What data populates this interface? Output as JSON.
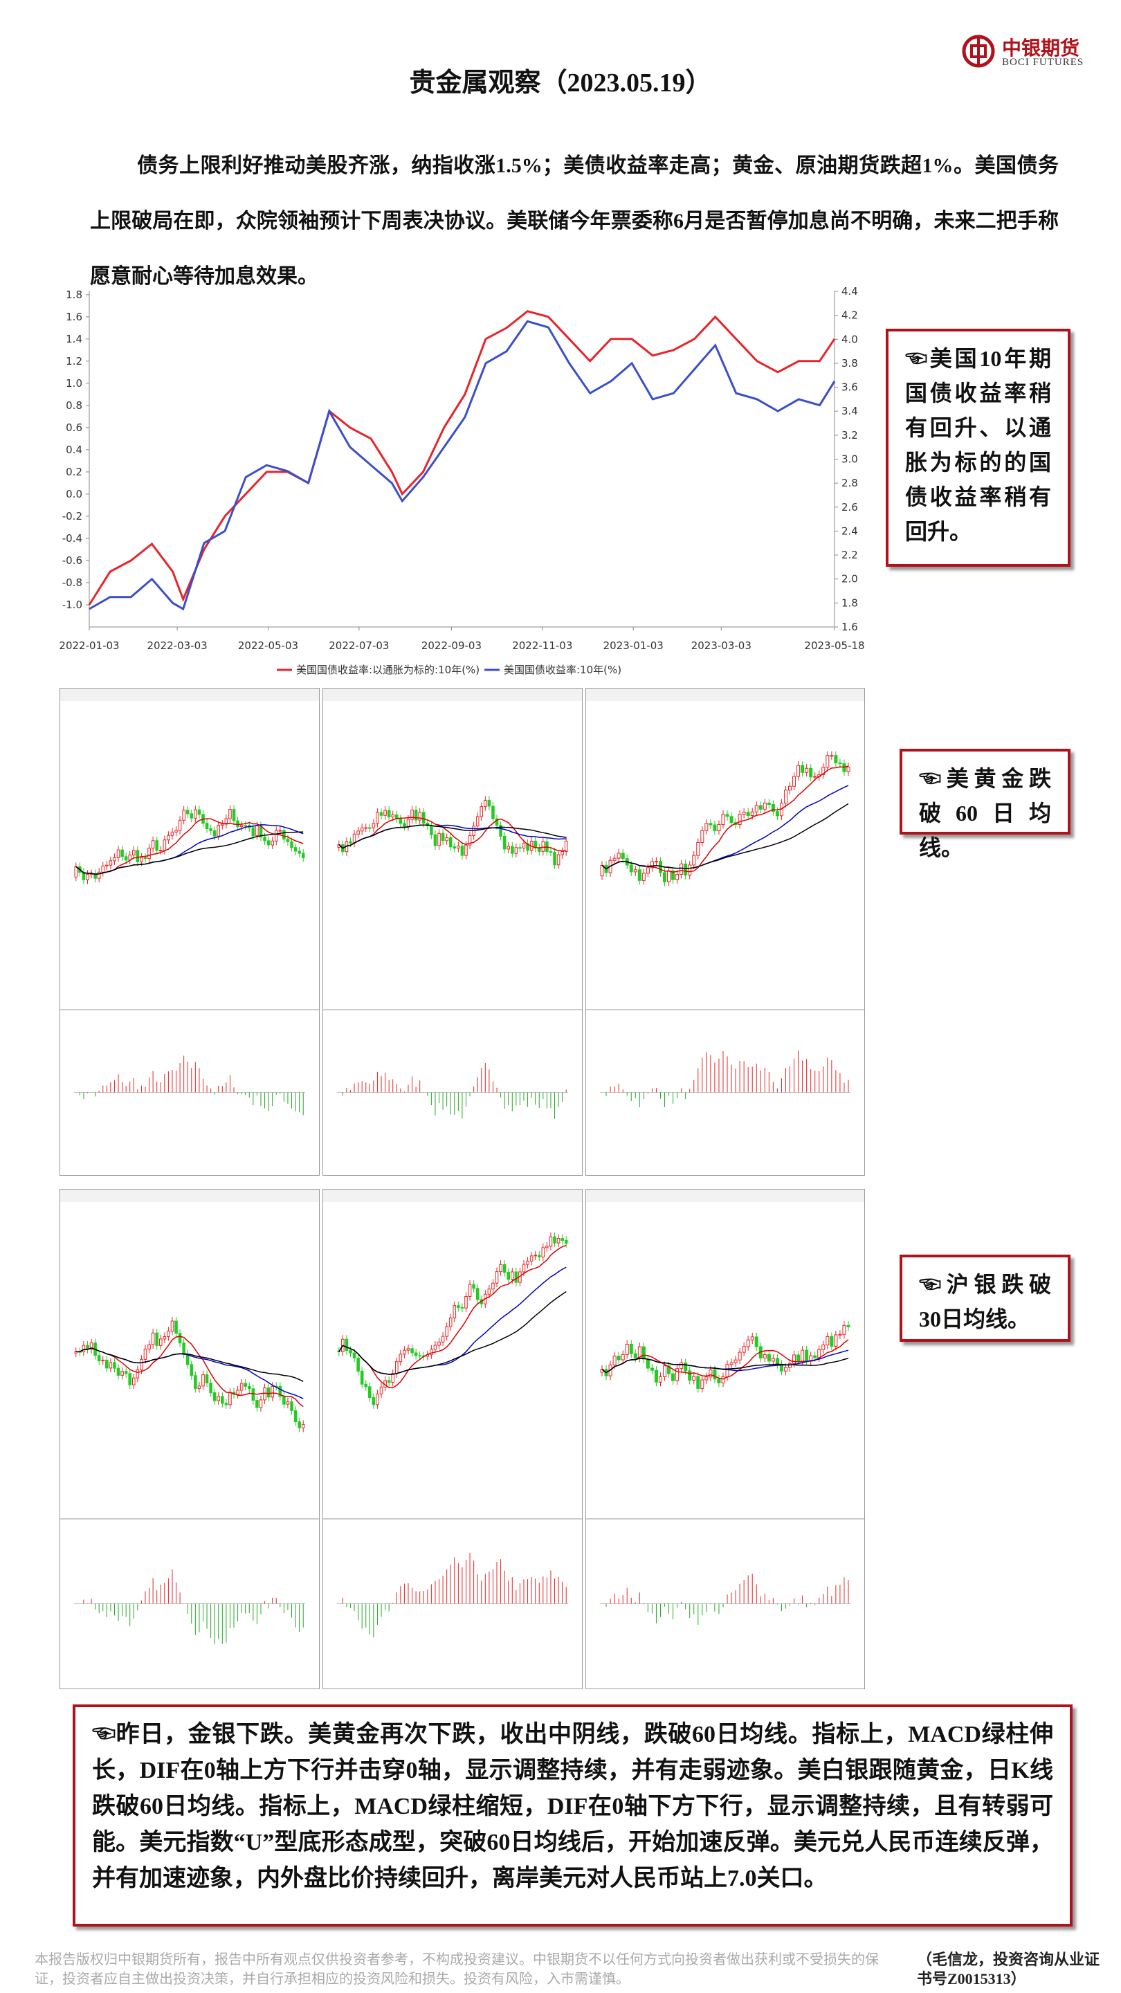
{
  "header": {
    "title": "贵金属观察（2023.05.19）",
    "logo_cn": "中银期货",
    "logo_en": "BOCI FUTURES"
  },
  "intro": "债务上限利好推动美股齐涨，纳指收涨1.5%；美债收益率走高；黄金、原油期货跌超1%。美国债务上限破局在即，众院领袖预计下周表决协议。美联储今年票委称6月是否暂停加息尚不明确，未来二把手称愿意耐心等待加息效果。",
  "chart_data": {
    "type": "line",
    "x": [
      "2022-01-03",
      "2022-01-17",
      "2022-01-31",
      "2022-02-14",
      "2022-02-28",
      "2022-03-07",
      "2022-03-21",
      "2022-04-04",
      "2022-04-18",
      "2022-05-02",
      "2022-05-16",
      "2022-05-30",
      "2022-06-13",
      "2022-06-27",
      "2022-07-11",
      "2022-07-25",
      "2022-08-01",
      "2022-08-15",
      "2022-08-29",
      "2022-09-12",
      "2022-09-26",
      "2022-10-10",
      "2022-10-24",
      "2022-11-07",
      "2022-11-21",
      "2022-12-05",
      "2022-12-19",
      "2023-01-02",
      "2023-01-16",
      "2023-01-30",
      "2023-02-13",
      "2023-02-27",
      "2023-03-13",
      "2023-03-27",
      "2023-04-10",
      "2023-04-24",
      "2023-05-08",
      "2023-05-18"
    ],
    "series": [
      {
        "name": "美国国债收益率:以通胀为标的:10年(%)",
        "color": "#e8232a",
        "axis": "y",
        "values": [
          -1.0,
          -0.7,
          -0.6,
          -0.45,
          -0.7,
          -0.95,
          -0.5,
          -0.2,
          0.0,
          0.2,
          0.2,
          0.1,
          0.75,
          0.6,
          0.5,
          0.2,
          0.0,
          0.2,
          0.6,
          0.9,
          1.4,
          1.5,
          1.65,
          1.6,
          1.4,
          1.2,
          1.4,
          1.4,
          1.25,
          1.3,
          1.4,
          1.6,
          1.4,
          1.2,
          1.1,
          1.2,
          1.2,
          1.4
        ]
      },
      {
        "name": "美国国债收益率:10年(%)",
        "color": "#3a4fc9",
        "axis": "y2",
        "values": [
          1.75,
          1.85,
          1.85,
          2.0,
          1.8,
          1.75,
          2.3,
          2.4,
          2.85,
          2.95,
          2.9,
          2.8,
          3.4,
          3.1,
          2.95,
          2.8,
          2.65,
          2.85,
          3.1,
          3.35,
          3.8,
          3.9,
          4.15,
          4.1,
          3.8,
          3.55,
          3.65,
          3.8,
          3.5,
          3.55,
          3.75,
          3.95,
          3.55,
          3.5,
          3.4,
          3.5,
          3.45,
          3.65
        ]
      }
    ],
    "xlim": [
      "2022-01-03",
      "2023-05-18"
    ],
    "xticks": [
      "2022-01-03",
      "2022-03-03",
      "2022-05-03",
      "2022-07-03",
      "2022-09-03",
      "2022-11-03",
      "2023-01-03",
      "2023-03-03",
      "2023-05-18"
    ],
    "ylim": [
      -1.2,
      1.83
    ],
    "yticks": [
      {
        "value": -1.0,
        "label": "-1.0"
      },
      -0.8,
      -0.6,
      -0.4,
      -0.2,
      {
        "value": 0,
        "label": "0.0"
      },
      0.2,
      0.4,
      0.6,
      0.8,
      {
        "value": 1,
        "label": "1.0"
      },
      1.2,
      1.4,
      1.6,
      1.8
    ],
    "y2lim": [
      1.6,
      4.4
    ],
    "y2ticks": [
      1.6,
      1.8,
      {
        "value": 2,
        "label": "2.0"
      },
      2.2,
      2.4,
      2.6,
      2.8,
      {
        "value": 3,
        "label": "3.0"
      },
      3.2,
      3.4,
      3.6,
      3.8,
      {
        "value": 4,
        "label": "4.0"
      },
      4.2,
      4.4
    ],
    "legend": "bottom"
  },
  "callouts": [
    "☜美国10年期国债收益率稍有回升、以通胀为标的的国债收益率稍有回升。",
    "☜美黄金跌破60日均线。",
    "☜沪银跌破30日均线。"
  ],
  "summary": "☜昨日，金银下跌。美黄金再次下跌，收出中阴线，跌破60日均线。指标上，MACD绿柱伸长，DIF在0轴上方下行并击穿0轴，显示调整持续，并有走弱迹象。美白银跟随黄金，日K线跌破60日均线。指标上，MACD绿柱缩短，DIF在0轴下方下行，显示调整持续，且有转弱可能。美元指数“U”型底形态成型，突破60日均线后，开始加速反弹。美元兑人民币连续反弹，并有加速迹象，内外盘比价持续回升，离岸美元对人民币站上7.0关口。",
  "footer": {
    "disclaimer": "本报告版权归中银期货所有，报告中所有观点仅供投资者参考，不构成投资建议。中银期货不以任何方式向投资者做出获利或不受损失的保证，投资者应自主做出投资决策，并自行承担相应的投资风险和损失。投资有风险，入市需谨慎。",
    "author": "（毛信龙，投资咨询从业证书号Z0015313）"
  }
}
